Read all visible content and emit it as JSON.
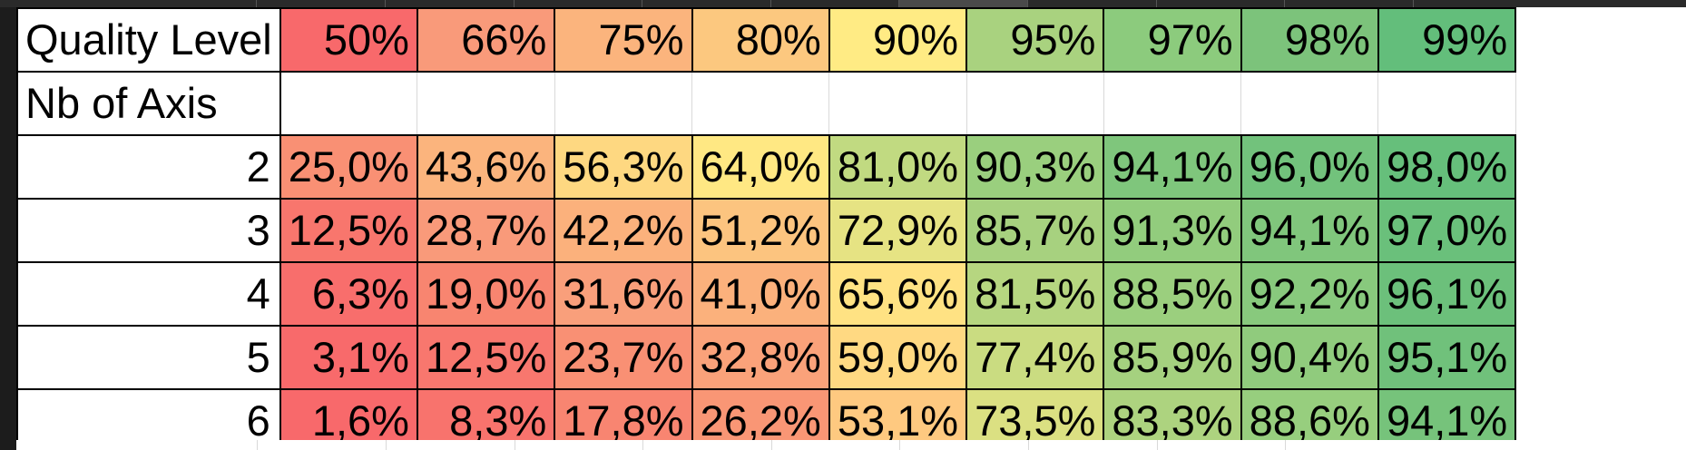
{
  "sheet": {
    "header": {
      "label": "Quality Level",
      "levels": [
        "50%",
        "66%",
        "75%",
        "80%",
        "90%",
        "95%",
        "97%",
        "98%",
        "99%"
      ],
      "colors": [
        "#f8696b",
        "#f99a7a",
        "#fbb47d",
        "#fcc87f",
        "#ffeb84",
        "#a9d27f",
        "#8ccb7d",
        "#7cc37b",
        "#63be7b"
      ]
    },
    "axis_row_label": "Nb of Axis",
    "rows": [
      {
        "axis": "2",
        "values": [
          "25,0%",
          "43,6%",
          "56,3%",
          "64,0%",
          "81,0%",
          "90,3%",
          "94,1%",
          "96,0%",
          "98,0%"
        ],
        "colors": [
          "#f99074",
          "#fbb47d",
          "#fed881",
          "#ffe883",
          "#c1da81",
          "#9acf7e",
          "#7fc67c",
          "#72c27c",
          "#66bf7b"
        ]
      },
      {
        "axis": "3",
        "values": [
          "12,5%",
          "28,7%",
          "42,2%",
          "51,2%",
          "72,9%",
          "85,7%",
          "91,3%",
          "94,1%",
          "97,0%"
        ],
        "colors": [
          "#f8766d",
          "#f99a7a",
          "#fbb17c",
          "#fcc47f",
          "#e6e383",
          "#a7d17f",
          "#92cc7d",
          "#80c67c",
          "#6ac07b"
        ]
      },
      {
        "axis": "4",
        "values": [
          "6,3%",
          "19,0%",
          "31,6%",
          "41,0%",
          "65,6%",
          "81,5%",
          "88,5%",
          "92,2%",
          "96,1%"
        ],
        "colors": [
          "#f86e6c",
          "#f88570",
          "#f99f7b",
          "#fbb17c",
          "#ffe283",
          "#b6d680",
          "#9bcf7e",
          "#88c97d",
          "#6cc07b"
        ]
      },
      {
        "axis": "5",
        "values": [
          "3,1%",
          "12,5%",
          "23,7%",
          "32,8%",
          "59,0%",
          "77,4%",
          "85,9%",
          "90,4%",
          "95,1%"
        ],
        "colors": [
          "#f86a6b",
          "#f8776e",
          "#f99074",
          "#faa27a",
          "#ffd982",
          "#cadc81",
          "#a5d17f",
          "#90cb7d",
          "#70c17b"
        ]
      },
      {
        "axis": "6",
        "values": [
          "1,6%",
          "8,3%",
          "17,8%",
          "26,2%",
          "53,1%",
          "73,5%",
          "83,3%",
          "88,6%",
          "94,1%"
        ],
        "colors": [
          "#f8696b",
          "#f8736d",
          "#f88571",
          "#f99675",
          "#fec980",
          "#dbe082",
          "#add37f",
          "#97ce7e",
          "#76c37b"
        ]
      }
    ]
  }
}
